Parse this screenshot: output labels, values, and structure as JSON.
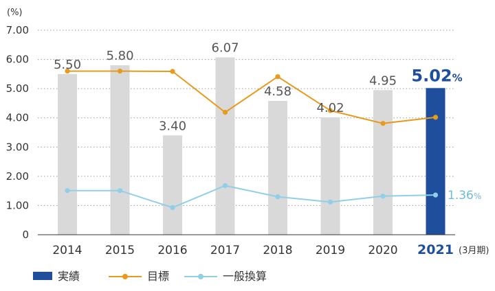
{
  "chart_data": {
    "type": "bar",
    "y_unit": "(%)",
    "x_suffix": "(3月期)",
    "categories": [
      "2014",
      "2015",
      "2016",
      "2017",
      "2018",
      "2019",
      "2020",
      "2021"
    ],
    "highlight_index": 7,
    "yticks": [
      "0",
      "1.00",
      "2.00",
      "3.00",
      "4.00",
      "5.00",
      "6.00",
      "7.00"
    ],
    "ylim": [
      0,
      7
    ],
    "grid": "dotted horizontal",
    "colors": {
      "bar": "#d9d9d9",
      "bar_highlight": "#1f4e9c",
      "target_line": "#e89a1c",
      "general_line": "#8fcfe8",
      "general_label": "#6fb8d8"
    },
    "series": [
      {
        "name": "実績",
        "kind": "bar",
        "values": [
          5.5,
          5.8,
          3.4,
          6.07,
          4.58,
          4.02,
          4.95,
          5.02
        ],
        "labels": [
          "5.50",
          "5.80",
          "3.40",
          "6.07",
          "4.58",
          "4.02",
          "4.95",
          "5.02"
        ],
        "highlight_suffix": "%"
      },
      {
        "name": "目標",
        "kind": "line",
        "values": [
          5.6,
          5.6,
          5.59,
          4.19,
          5.41,
          4.25,
          3.81,
          4.02
        ]
      },
      {
        "name": "一般換算",
        "kind": "line",
        "values": [
          1.51,
          1.51,
          0.93,
          1.68,
          1.3,
          1.12,
          1.32,
          1.36
        ],
        "end_label": "1.36",
        "end_label_suffix": "%"
      }
    ],
    "legend_position": "bottom-left"
  }
}
